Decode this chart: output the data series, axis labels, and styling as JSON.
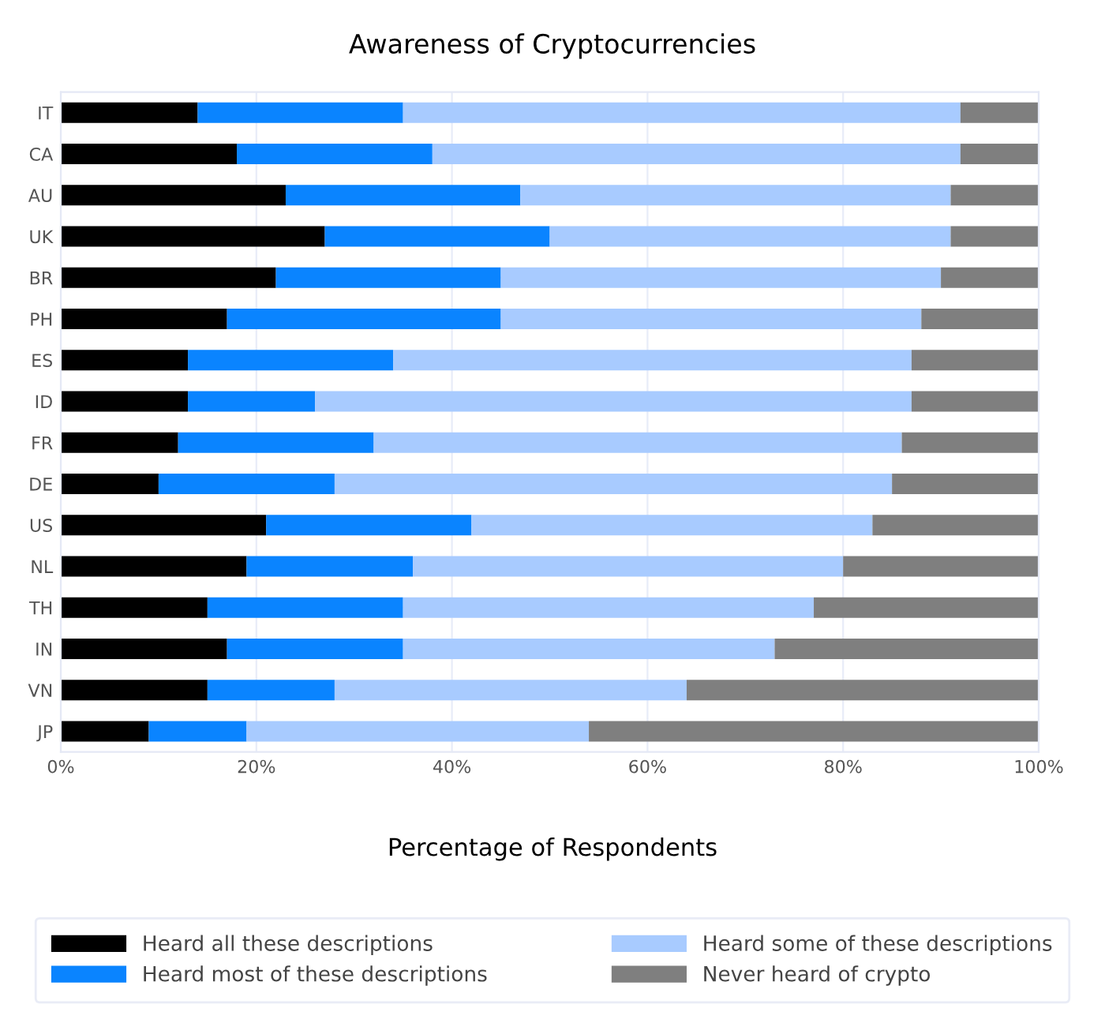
{
  "chart_data": {
    "type": "bar",
    "orientation": "horizontal",
    "stacked": true,
    "title": "Awareness of Cryptocurrencies",
    "xlabel": "Percentage of Respondents",
    "categories": [
      "IT",
      "CA",
      "AU",
      "UK",
      "BR",
      "PH",
      "ES",
      "ID",
      "FR",
      "DE",
      "US",
      "NL",
      "TH",
      "IN",
      "VN",
      "JP"
    ],
    "series": [
      {
        "name": "Heard all these descriptions",
        "color": "#000000",
        "values": [
          14,
          18,
          23,
          27,
          22,
          17,
          13,
          13,
          12,
          10,
          21,
          19,
          15,
          17,
          15,
          9
        ]
      },
      {
        "name": "Heard most of these descriptions",
        "color": "#0a84ff",
        "values": [
          21,
          20,
          24,
          23,
          23,
          28,
          21,
          13,
          20,
          18,
          21,
          17,
          20,
          18,
          13,
          10
        ]
      },
      {
        "name": "Heard some of these descriptions",
        "color": "#a8cbff",
        "values": [
          57,
          54,
          44,
          41,
          45,
          43,
          53,
          61,
          54,
          57,
          41,
          44,
          42,
          38,
          36,
          35
        ]
      },
      {
        "name": "Never heard of crypto",
        "color": "#7f7f7f",
        "values": [
          8,
          8,
          9,
          9,
          10,
          12,
          13,
          13,
          14,
          15,
          17,
          20,
          23,
          27,
          36,
          46
        ]
      }
    ],
    "xlim": [
      0,
      100
    ],
    "xticks": [
      {
        "value": 0,
        "label": "0%"
      },
      {
        "value": 20,
        "label": "20%"
      },
      {
        "value": 40,
        "label": "40%"
      },
      {
        "value": 60,
        "label": "60%"
      },
      {
        "value": 80,
        "label": "80%"
      },
      {
        "value": 100,
        "label": "100%"
      }
    ],
    "grid": true,
    "legend": "bottom"
  }
}
